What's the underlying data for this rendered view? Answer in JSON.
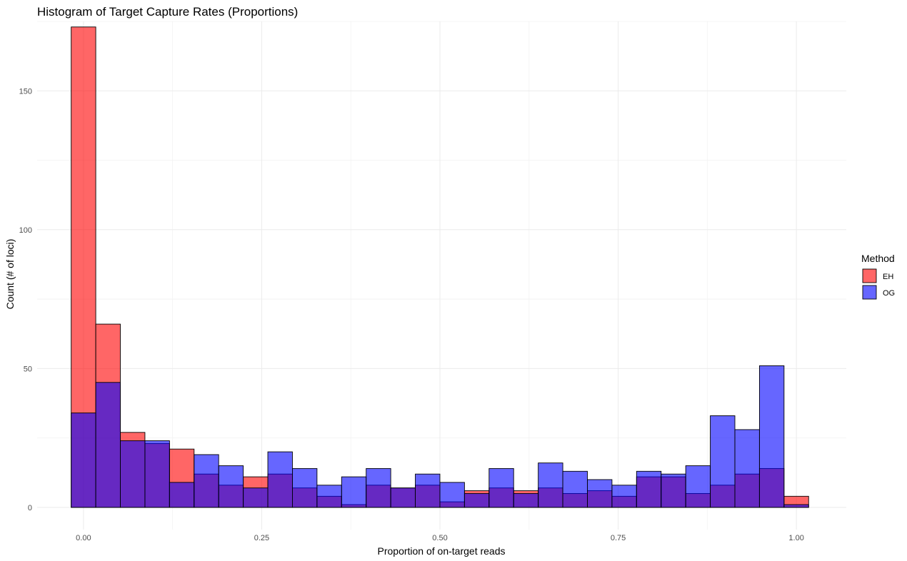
{
  "chart_data": {
    "type": "histogram",
    "title": "Histogram of Target Capture Rates (Proportions)",
    "xlabel": "Proportion of on-target reads",
    "ylabel": "Count (# of loci)",
    "xlim": [
      -0.065,
      1.07
    ],
    "ylim": [
      -8,
      175
    ],
    "x_ticks": [
      0.0,
      0.25,
      0.5,
      0.75,
      1.0
    ],
    "x_tick_labels": [
      "0.00",
      "0.25",
      "0.50",
      "0.75",
      "1.00"
    ],
    "y_ticks": [
      0,
      50,
      100,
      150
    ],
    "y_tick_labels": [
      "0",
      "50",
      "100",
      "150"
    ],
    "grid": true,
    "legend_position": "right",
    "legend_title": "Method",
    "bin_width": 0.03448,
    "bin_start": -0.01724,
    "series": [
      {
        "name": "EH",
        "color": "#ff0000",
        "opacity": 0.6,
        "values": [
          173,
          66,
          27,
          23,
          21,
          12,
          8,
          11,
          12,
          7,
          4,
          1,
          8,
          7,
          8,
          2,
          6,
          7,
          6,
          7,
          5,
          6,
          4,
          11,
          11,
          5,
          8,
          12,
          14,
          4
        ]
      },
      {
        "name": "OG",
        "color": "#0000ff",
        "opacity": 0.6,
        "values": [
          34,
          45,
          24,
          24,
          9,
          19,
          15,
          7,
          20,
          14,
          8,
          11,
          14,
          7,
          12,
          9,
          5,
          14,
          5,
          16,
          13,
          10,
          8,
          13,
          12,
          15,
          33,
          28,
          51,
          1
        ]
      }
    ]
  }
}
